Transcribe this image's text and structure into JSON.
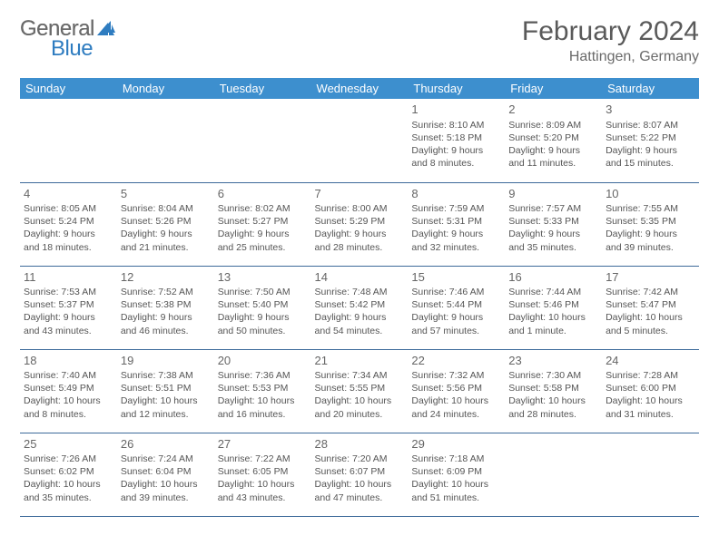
{
  "logo": {
    "text_gray": "General",
    "text_blue": "Blue",
    "icon_color": "#2e7cc0"
  },
  "header": {
    "month_title": "February 2024",
    "location": "Hattingen, Germany"
  },
  "calendar": {
    "type": "table",
    "header_bg": "#3d8fce",
    "header_text_color": "#ffffff",
    "border_color": "#3d6a9a",
    "text_color": "#555555",
    "day_num_color": "#666666",
    "background_color": "#ffffff",
    "font_size_body": 10.5,
    "font_size_daynum": 13,
    "font_size_header": 13,
    "columns": [
      "Sunday",
      "Monday",
      "Tuesday",
      "Wednesday",
      "Thursday",
      "Friday",
      "Saturday"
    ],
    "weeks": [
      [
        null,
        null,
        null,
        null,
        {
          "n": "1",
          "sr": "8:10 AM",
          "ss": "5:18 PM",
          "dl": "9 hours and 8 minutes."
        },
        {
          "n": "2",
          "sr": "8:09 AM",
          "ss": "5:20 PM",
          "dl": "9 hours and 11 minutes."
        },
        {
          "n": "3",
          "sr": "8:07 AM",
          "ss": "5:22 PM",
          "dl": "9 hours and 15 minutes."
        }
      ],
      [
        {
          "n": "4",
          "sr": "8:05 AM",
          "ss": "5:24 PM",
          "dl": "9 hours and 18 minutes."
        },
        {
          "n": "5",
          "sr": "8:04 AM",
          "ss": "5:26 PM",
          "dl": "9 hours and 21 minutes."
        },
        {
          "n": "6",
          "sr": "8:02 AM",
          "ss": "5:27 PM",
          "dl": "9 hours and 25 minutes."
        },
        {
          "n": "7",
          "sr": "8:00 AM",
          "ss": "5:29 PM",
          "dl": "9 hours and 28 minutes."
        },
        {
          "n": "8",
          "sr": "7:59 AM",
          "ss": "5:31 PM",
          "dl": "9 hours and 32 minutes."
        },
        {
          "n": "9",
          "sr": "7:57 AM",
          "ss": "5:33 PM",
          "dl": "9 hours and 35 minutes."
        },
        {
          "n": "10",
          "sr": "7:55 AM",
          "ss": "5:35 PM",
          "dl": "9 hours and 39 minutes."
        }
      ],
      [
        {
          "n": "11",
          "sr": "7:53 AM",
          "ss": "5:37 PM",
          "dl": "9 hours and 43 minutes."
        },
        {
          "n": "12",
          "sr": "7:52 AM",
          "ss": "5:38 PM",
          "dl": "9 hours and 46 minutes."
        },
        {
          "n": "13",
          "sr": "7:50 AM",
          "ss": "5:40 PM",
          "dl": "9 hours and 50 minutes."
        },
        {
          "n": "14",
          "sr": "7:48 AM",
          "ss": "5:42 PM",
          "dl": "9 hours and 54 minutes."
        },
        {
          "n": "15",
          "sr": "7:46 AM",
          "ss": "5:44 PM",
          "dl": "9 hours and 57 minutes."
        },
        {
          "n": "16",
          "sr": "7:44 AM",
          "ss": "5:46 PM",
          "dl": "10 hours and 1 minute."
        },
        {
          "n": "17",
          "sr": "7:42 AM",
          "ss": "5:47 PM",
          "dl": "10 hours and 5 minutes."
        }
      ],
      [
        {
          "n": "18",
          "sr": "7:40 AM",
          "ss": "5:49 PM",
          "dl": "10 hours and 8 minutes."
        },
        {
          "n": "19",
          "sr": "7:38 AM",
          "ss": "5:51 PM",
          "dl": "10 hours and 12 minutes."
        },
        {
          "n": "20",
          "sr": "7:36 AM",
          "ss": "5:53 PM",
          "dl": "10 hours and 16 minutes."
        },
        {
          "n": "21",
          "sr": "7:34 AM",
          "ss": "5:55 PM",
          "dl": "10 hours and 20 minutes."
        },
        {
          "n": "22",
          "sr": "7:32 AM",
          "ss": "5:56 PM",
          "dl": "10 hours and 24 minutes."
        },
        {
          "n": "23",
          "sr": "7:30 AM",
          "ss": "5:58 PM",
          "dl": "10 hours and 28 minutes."
        },
        {
          "n": "24",
          "sr": "7:28 AM",
          "ss": "6:00 PM",
          "dl": "10 hours and 31 minutes."
        }
      ],
      [
        {
          "n": "25",
          "sr": "7:26 AM",
          "ss": "6:02 PM",
          "dl": "10 hours and 35 minutes."
        },
        {
          "n": "26",
          "sr": "7:24 AM",
          "ss": "6:04 PM",
          "dl": "10 hours and 39 minutes."
        },
        {
          "n": "27",
          "sr": "7:22 AM",
          "ss": "6:05 PM",
          "dl": "10 hours and 43 minutes."
        },
        {
          "n": "28",
          "sr": "7:20 AM",
          "ss": "6:07 PM",
          "dl": "10 hours and 47 minutes."
        },
        {
          "n": "29",
          "sr": "7:18 AM",
          "ss": "6:09 PM",
          "dl": "10 hours and 51 minutes."
        },
        null,
        null
      ]
    ]
  },
  "labels": {
    "sunrise_prefix": "Sunrise: ",
    "sunset_prefix": "Sunset: ",
    "daylight_prefix": "Daylight: "
  }
}
